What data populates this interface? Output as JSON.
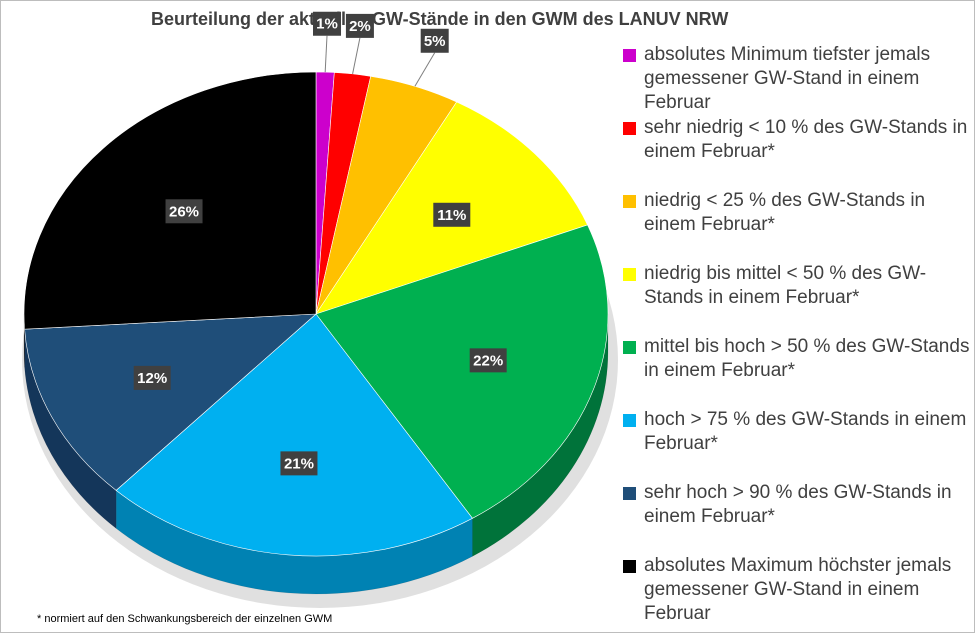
{
  "chart_data": {
    "type": "pie",
    "title": "Beurteilung der aktuellen GW-Stände in den GWM des LANUV NRW",
    "categories": [
      "absolutes Minimum  tiefster jemals gemessener GW-Stand in einem Februar",
      "sehr niedrig  < 10 % des GW-Stands in einem Februar*",
      "niedrig   < 25 % des GW-Stands in einem Februar*",
      "niedrig bis mittel  < 50 % des GW-Stands in einem Februar*",
      "mittel bis hoch  > 50 % des GW-Stands in einem Februar*",
      "hoch  > 75 % des GW-Stands in einem Februar*",
      "sehr hoch  > 90 % des GW-Stands in einem Februar*",
      "absolutes Maximum  höchster jemals gemessener GW-Stand in einem Februar"
    ],
    "values": [
      1,
      2,
      5,
      11,
      22,
      21,
      12,
      26
    ],
    "data_labels": [
      "1%",
      "2%",
      "5%",
      "11%",
      "22%",
      "21%",
      "12%",
      "26%"
    ],
    "colors": [
      "#cc00cc",
      "#ff0000",
      "#ffc000",
      "#ffff00",
      "#00b050",
      "#00b0f0",
      "#1f4e79",
      "#000000"
    ],
    "side_colors": [
      "#8a008a",
      "#b00000",
      "#c99400",
      "#c7c700",
      "#00733a",
      "#0082b3",
      "#14365a",
      "#1a1a1a"
    ],
    "legend_position": "right",
    "footnote": "* normiert auf den Schwankungsbereich der einzelnen GWM"
  }
}
